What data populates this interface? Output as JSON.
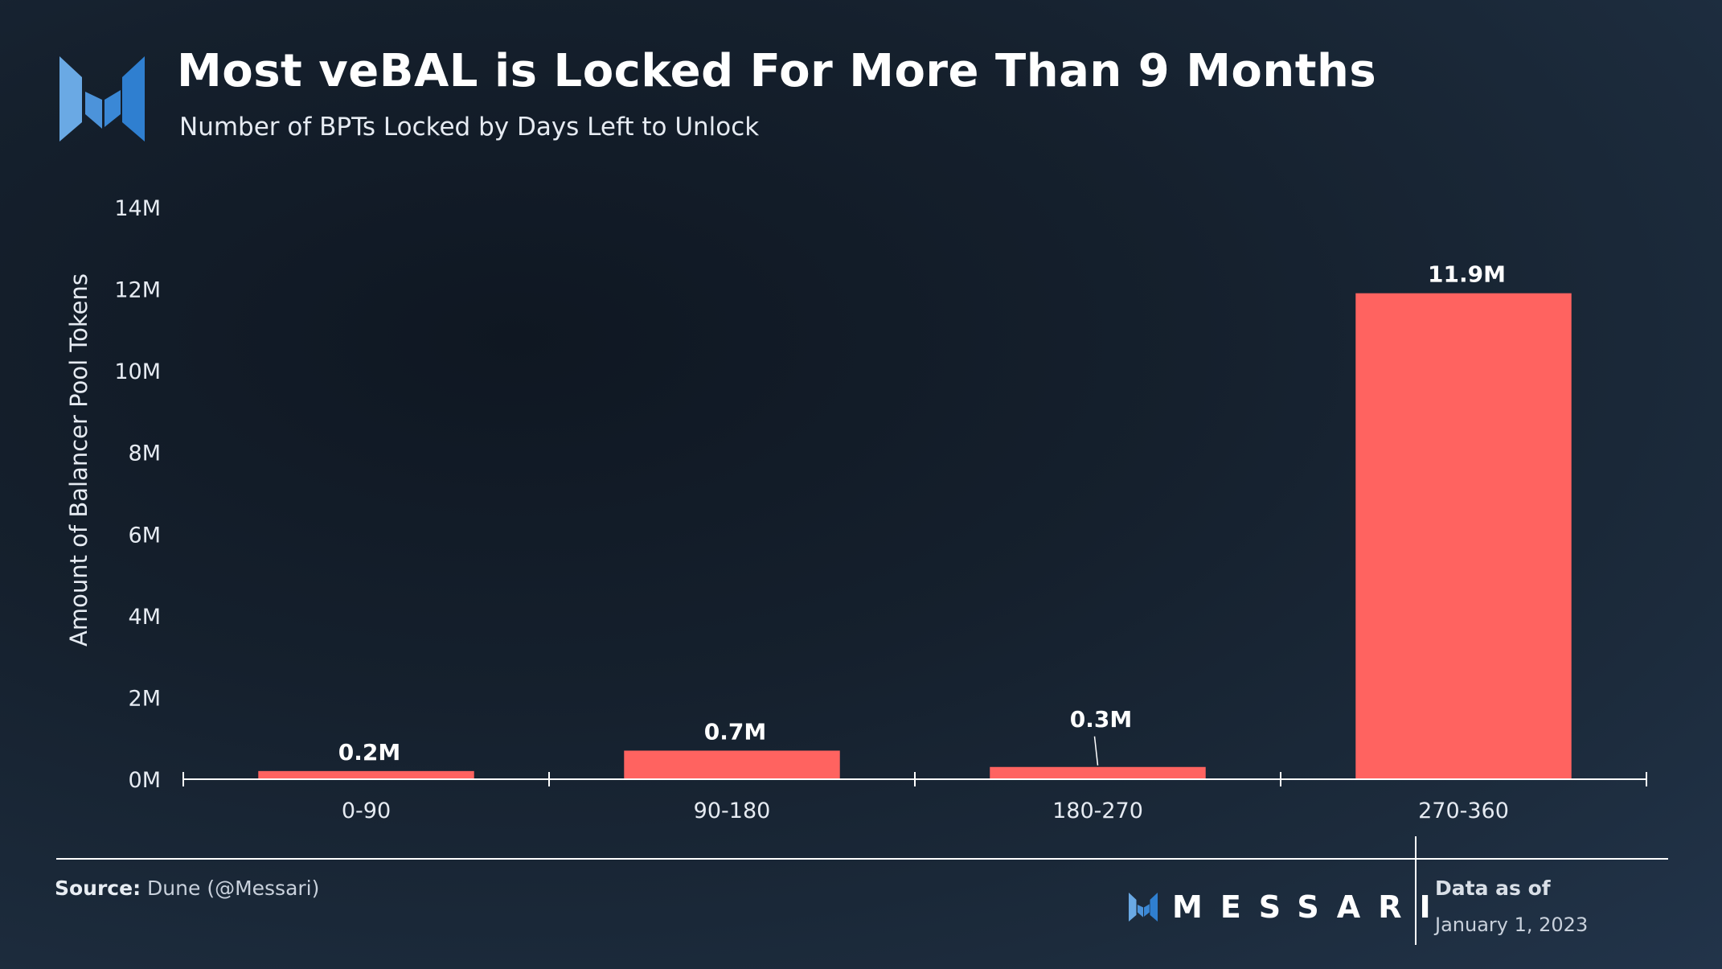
{
  "header": {
    "title": "Most veBAL is Locked For More Than 9 Months",
    "subtitle": "Number of BPTs Locked by Days Left to Unlock"
  },
  "chart_data": {
    "type": "bar",
    "categories": [
      "0-90",
      "90-180",
      "180-270",
      "270-360"
    ],
    "values": [
      0.2,
      0.7,
      0.3,
      11.9
    ],
    "value_labels": [
      "0.2M",
      "0.7M",
      "0.3M",
      "11.9M"
    ],
    "unit": "M",
    "ylabel": "Amount of Balancer Pool Tokens",
    "xlabel": "",
    "ylim": [
      0,
      14
    ],
    "yticks": [
      0,
      2,
      4,
      6,
      8,
      10,
      12,
      14
    ],
    "ytick_labels": [
      "0M",
      "2M",
      "4M",
      "6M",
      "8M",
      "10M",
      "12M",
      "14M"
    ],
    "grid": false,
    "bar_color": "#ff6360"
  },
  "footer": {
    "source_label": "Source:",
    "source_text": "Dune (@Messari)",
    "brand": "MESSARI",
    "data_as_of_label": "Data as of",
    "data_as_of_date": "January 1, 2023"
  },
  "colors": {
    "logo_light": "#6aa9e4",
    "logo_dark": "#2f7fd0"
  }
}
